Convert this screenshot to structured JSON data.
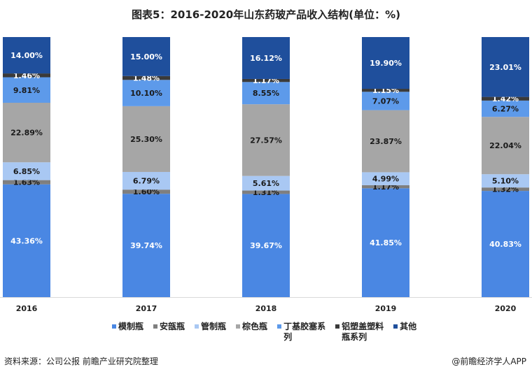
{
  "chart_data": {
    "type": "bar",
    "stacked": true,
    "title": "图表5：2016-2020年山东药玻产品收入结构(单位：%)",
    "categories": [
      "2016",
      "2017",
      "2018",
      "2019",
      "2020"
    ],
    "ylim": [
      0,
      100
    ],
    "grid": false,
    "legend_position": "bottom",
    "series": [
      {
        "name": "模制瓶",
        "color": "#4a87e3",
        "label_color": "#ffffff",
        "values": [
          43.36,
          39.74,
          39.67,
          41.85,
          40.83
        ]
      },
      {
        "name": "安瓿瓶",
        "color": "#7f7f7f",
        "label_color": "#1a1a1a",
        "values": [
          1.63,
          1.6,
          1.31,
          1.17,
          1.32
        ]
      },
      {
        "name": "管制瓶",
        "color": "#a9c8f3",
        "label_color": "#1a1a1a",
        "values": [
          6.85,
          6.79,
          5.61,
          4.99,
          5.1
        ]
      },
      {
        "name": "棕色瓶",
        "color": "#a6a6a6",
        "label_color": "#1a1a1a",
        "values": [
          22.89,
          25.3,
          27.57,
          23.87,
          22.04
        ]
      },
      {
        "name": "丁基胶塞系列",
        "color": "#5d9aea",
        "label_color": "#1a1a1a",
        "values": [
          9.81,
          10.1,
          8.55,
          7.07,
          6.27
        ]
      },
      {
        "name": "铝塑盖塑料瓶系列",
        "color": "#3a3a3a",
        "label_color": "#ffffff",
        "values": [
          1.46,
          1.48,
          1.17,
          1.15,
          1.42
        ]
      },
      {
        "name": "其他",
        "color": "#1f4f9c",
        "label_color": "#ffffff",
        "values": [
          14.0,
          15.0,
          16.12,
          19.9,
          23.01
        ]
      }
    ]
  },
  "footer": {
    "source": "资料来源：公司公报 前瞻产业研究院整理",
    "brand": "@前瞻经济学人APP"
  }
}
